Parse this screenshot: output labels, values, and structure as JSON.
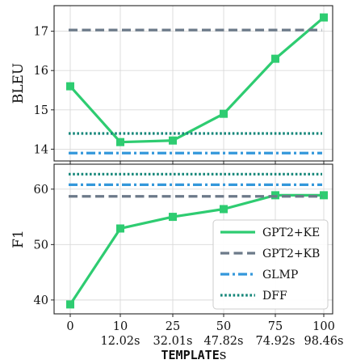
{
  "chart_data": [
    {
      "type": "line",
      "panel": "top",
      "title": "",
      "xlabel": "",
      "ylabel": "BLEU",
      "x_positions": [
        "0",
        "10",
        "25",
        "50",
        "75",
        "100"
      ],
      "ylim": [
        13.7,
        17.65
      ],
      "yticks": [
        14,
        15,
        16,
        17
      ],
      "grid": true,
      "series": [
        {
          "name": "GPT2+KE",
          "style": "solid-square",
          "color": "#2ecc71",
          "values": [
            15.6,
            14.18,
            14.22,
            14.9,
            16.3,
            17.35
          ]
        },
        {
          "name": "GPT2+KB",
          "style": "dashed",
          "color": "#6c7a89",
          "constant": 17.03
        },
        {
          "name": "GLMP",
          "style": "dashdot",
          "color": "#3498db",
          "constant": 13.9
        },
        {
          "name": "DFF",
          "style": "dotted",
          "color": "#16877a",
          "constant": 14.4
        }
      ]
    },
    {
      "type": "line",
      "panel": "bottom",
      "title": "",
      "ylabel": "F1",
      "x_positions": [
        "0",
        "10",
        "25",
        "50",
        "75",
        "100"
      ],
      "ylim": [
        37.5,
        64.5
      ],
      "yticks": [
        40,
        50,
        60
      ],
      "grid": true,
      "legend_position": "lower-right",
      "series": [
        {
          "name": "GPT2+KE",
          "style": "solid-square",
          "color": "#2ecc71",
          "values": [
            39.2,
            52.9,
            55.0,
            56.4,
            58.9,
            58.9
          ]
        },
        {
          "name": "GPT2+KB",
          "style": "dashed",
          "color": "#6c7a89",
          "constant": 58.7
        },
        {
          "name": "GLMP",
          "style": "dashdot",
          "color": "#3498db",
          "constant": 60.8
        },
        {
          "name": "DFF",
          "style": "dotted",
          "color": "#16877a",
          "constant": 62.7
        }
      ],
      "x_tick_labels": [
        "0",
        "10",
        "25",
        "50",
        "75",
        "100"
      ],
      "x_tick_sublabels": [
        "",
        "12.02s",
        "32.01s",
        "47.82s",
        "74.92s",
        "98.46s"
      ],
      "xlabel_mono": "TEMPLATE",
      "xlabel_suffix": "s"
    }
  ]
}
